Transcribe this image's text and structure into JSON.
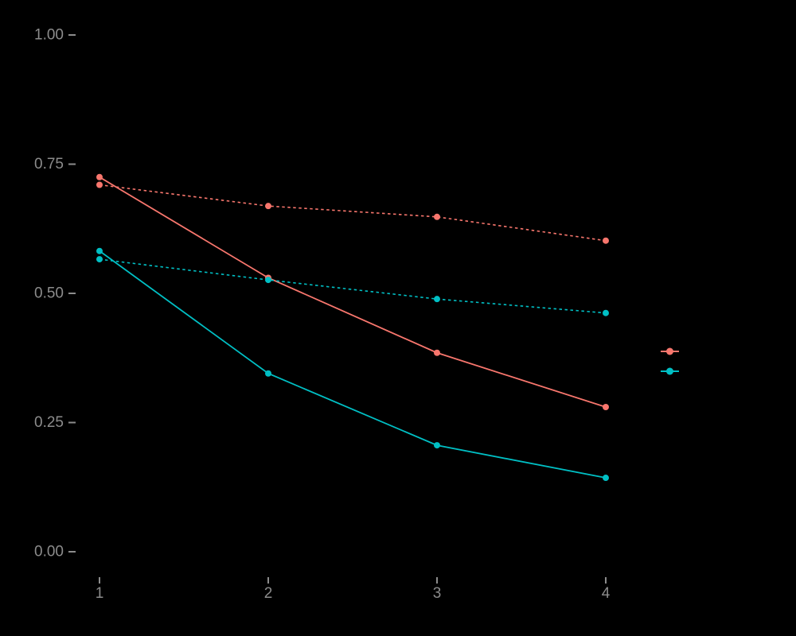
{
  "chart_data": {
    "type": "line",
    "title": "",
    "xlabel": "",
    "ylabel": "",
    "background_color": "#000000",
    "tick_label_color": "#8c8c8c",
    "tick_mark_color": "#8c8c8c",
    "grid": "off",
    "legend_position": "right",
    "x": [
      1,
      2,
      3,
      4
    ],
    "xlim": [
      1,
      4
    ],
    "ylim": [
      0.0,
      1.0
    ],
    "xticks": [
      {
        "label": "1",
        "value": 1
      },
      {
        "label": "2",
        "value": 2
      },
      {
        "label": "3",
        "value": 3
      },
      {
        "label": "4",
        "value": 4
      }
    ],
    "yticks": [
      {
        "label": "0.00",
        "value": 0.0
      },
      {
        "label": "0.25",
        "value": 0.25
      },
      {
        "label": "0.50",
        "value": 0.5
      },
      {
        "label": "0.75",
        "value": 0.75
      },
      {
        "label": "1.00",
        "value": 1.0
      }
    ],
    "series": [
      {
        "name": "salmon-solid",
        "color": "#F8766D",
        "linetype": "solid",
        "marker": "circle",
        "values": [
          0.725,
          0.53,
          0.385,
          0.28
        ]
      },
      {
        "name": "salmon-dashed",
        "color": "#F8766D",
        "linetype": "dashed",
        "marker": "circle",
        "values": [
          0.71,
          0.669,
          0.648,
          0.602
        ]
      },
      {
        "name": "teal-solid",
        "color": "#00BFC4",
        "linetype": "solid",
        "marker": "circle",
        "values": [
          0.582,
          0.345,
          0.206,
          0.143
        ]
      },
      {
        "name": "teal-dashed",
        "color": "#00BFC4",
        "linetype": "dashed",
        "marker": "circle",
        "values": [
          0.566,
          0.526,
          0.489,
          0.462
        ]
      }
    ],
    "legend": [
      {
        "name": "legend-key-salmon",
        "color": "#F8766D",
        "label": ""
      },
      {
        "name": "legend-key-teal",
        "color": "#00BFC4",
        "label": ""
      }
    ]
  }
}
